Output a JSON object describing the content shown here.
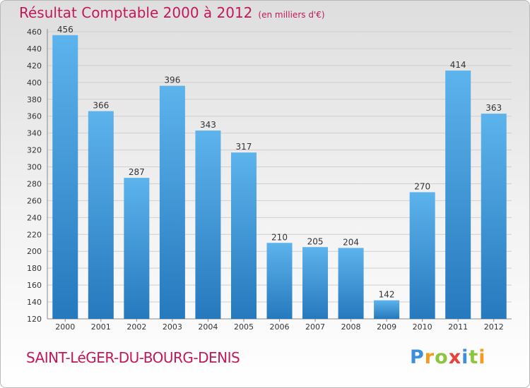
{
  "header": {
    "title": "Résultat Comptable 2000 à 2012",
    "subtitle": "(en milliers d'€)"
  },
  "footer": {
    "commune": "SAINT-LéGER-DU-BOURG-DENIS",
    "logo_letters": [
      "P",
      "r",
      "o",
      "x",
      "i",
      "t",
      "i"
    ]
  },
  "colors": {
    "title": "#c2185b",
    "bar": "#3d97d8",
    "logo": [
      "#3d8fd8",
      "#f29b20",
      "#8cc63f",
      "#e8403a",
      "#3d8fd8",
      "#8cc63f",
      "#f29b20"
    ]
  },
  "chart_data": {
    "type": "bar",
    "title": "Résultat Comptable 2000 à 2012",
    "subtitle": "(en milliers d'€)",
    "xlabel": "",
    "ylabel": "",
    "categories": [
      "2000",
      "2001",
      "2002",
      "2003",
      "2004",
      "2005",
      "2006",
      "2007",
      "2008",
      "2009",
      "2010",
      "2011",
      "2012"
    ],
    "values": [
      456,
      366,
      287,
      396,
      343,
      317,
      210,
      205,
      204,
      142,
      270,
      414,
      363
    ],
    "ylim": [
      120,
      460
    ],
    "yticks": [
      120,
      140,
      160,
      180,
      200,
      220,
      240,
      260,
      280,
      300,
      320,
      340,
      360,
      380,
      400,
      420,
      440,
      460
    ],
    "grid": true
  }
}
